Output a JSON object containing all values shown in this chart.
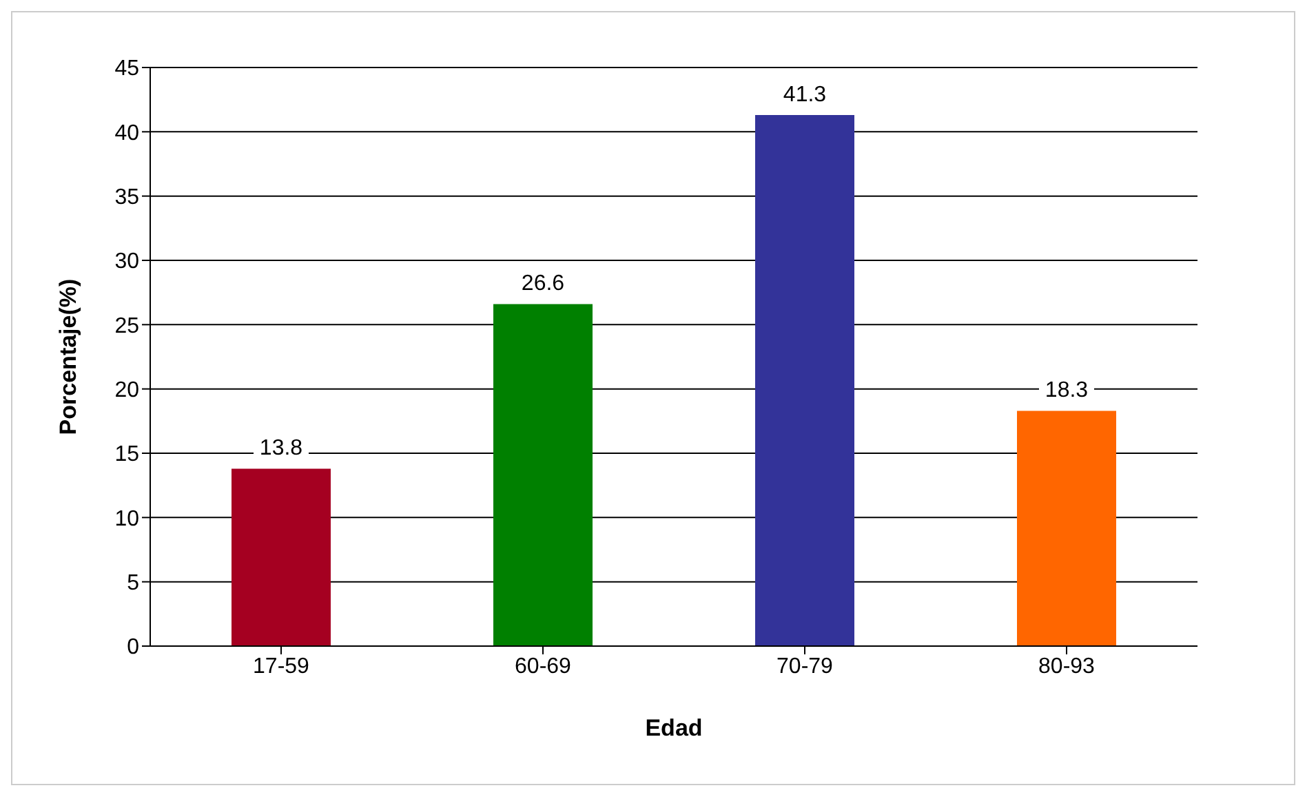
{
  "chart_data": {
    "type": "bar",
    "xlabel": "Edad",
    "ylabel": "Porcentaje(%)",
    "categories": [
      "17-59",
      "60-69",
      "70-79",
      "80-93"
    ],
    "values": [
      13.8,
      26.6,
      41.3,
      18.3
    ],
    "colors": [
      "#a50021",
      "#008000",
      "#333399",
      "#ff6600"
    ],
    "ylim": [
      0,
      45
    ],
    "yticks": [
      0,
      5,
      10,
      15,
      20,
      25,
      30,
      35,
      40,
      45
    ],
    "grid": "y",
    "data_labels": true
  }
}
